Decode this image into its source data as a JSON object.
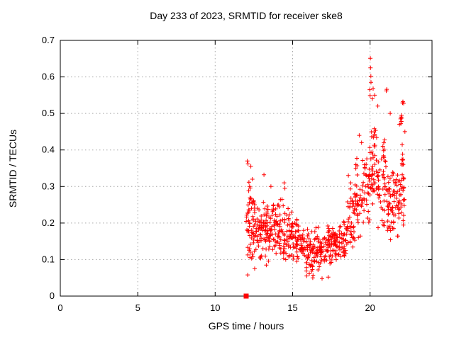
{
  "chart": {
    "title": "Day 233 of 2023, SRMTID for receiver ske8",
    "xlabel": "GPS time / hours",
    "ylabel": "SRMTID / TECUs"
  },
  "chart_data": {
    "type": "scatter",
    "title": "Day 233 of 2023, SRMTID for receiver ske8",
    "xlabel": "GPS time / hours",
    "ylabel": "SRMTID / TECUs",
    "xlim": [
      0,
      24
    ],
    "ylim": [
      0,
      0.7
    ],
    "x_ticks": [
      {
        "v": 0,
        "label": "0"
      },
      {
        "v": 5,
        "label": "5"
      },
      {
        "v": 10,
        "label": "10"
      },
      {
        "v": 15,
        "label": "15"
      },
      {
        "v": 20,
        "label": "20"
      }
    ],
    "y_ticks": [
      {
        "v": 0.0,
        "label": "0"
      },
      {
        "v": 0.1,
        "label": "0.1"
      },
      {
        "v": 0.2,
        "label": "0.2"
      },
      {
        "v": 0.3,
        "label": "0.3"
      },
      {
        "v": 0.4,
        "label": "0.4"
      },
      {
        "v": 0.5,
        "label": "0.5"
      },
      {
        "v": 0.6,
        "label": "0.6"
      },
      {
        "v": 0.7,
        "label": "0.7"
      }
    ],
    "x_grid": [
      5,
      10,
      15,
      20
    ],
    "y_grid": [
      0.1,
      0.2,
      0.3,
      0.4,
      0.5,
      0.6
    ],
    "grid": true,
    "legend": "none",
    "border_color": "#000000",
    "grid_color": "#a6a6a6",
    "marker": {
      "shape": "plus",
      "color": "#ff0000",
      "size": 7
    },
    "data_time_range_hours": [
      12.0,
      22.35
    ],
    "series": [
      {
        "name": "SRMTID",
        "seed": 7,
        "y_clamp": [
          0.04,
          0.67
        ],
        "bands": [
          [
            12.0,
            12.3,
            30,
            0.2,
            0.12
          ],
          [
            12.3,
            12.6,
            30,
            0.19,
            0.1
          ],
          [
            12.6,
            13.0,
            38,
            0.17,
            0.08
          ],
          [
            13.0,
            13.5,
            42,
            0.18,
            0.09
          ],
          [
            13.5,
            14.0,
            42,
            0.18,
            0.08
          ],
          [
            14.0,
            14.5,
            42,
            0.18,
            0.09
          ],
          [
            14.5,
            15.0,
            40,
            0.17,
            0.08
          ],
          [
            15.0,
            15.5,
            40,
            0.15,
            0.08
          ],
          [
            15.5,
            16.0,
            40,
            0.13,
            0.07
          ],
          [
            16.0,
            16.5,
            40,
            0.12,
            0.07
          ],
          [
            16.5,
            17.0,
            40,
            0.13,
            0.07
          ],
          [
            17.0,
            17.5,
            42,
            0.145,
            0.07
          ],
          [
            17.5,
            18.0,
            40,
            0.145,
            0.06
          ],
          [
            18.0,
            18.5,
            36,
            0.16,
            0.07
          ],
          [
            18.5,
            19.0,
            36,
            0.21,
            0.1
          ],
          [
            19.0,
            19.5,
            38,
            0.26,
            0.12
          ],
          [
            19.5,
            20.0,
            40,
            0.31,
            0.14
          ],
          [
            20.0,
            20.5,
            44,
            0.35,
            0.15
          ],
          [
            20.5,
            21.0,
            42,
            0.31,
            0.13
          ],
          [
            21.0,
            21.5,
            40,
            0.28,
            0.13
          ],
          [
            21.5,
            22.0,
            40,
            0.26,
            0.11
          ],
          [
            22.0,
            22.35,
            28,
            0.3,
            0.14
          ]
        ],
        "outliers": [
          [
            20.02,
            0.651
          ],
          [
            20.03,
            0.625
          ],
          [
            20.05,
            0.602
          ],
          [
            20.06,
            0.585
          ],
          [
            19.98,
            0.565
          ],
          [
            20.2,
            0.568
          ],
          [
            20.0,
            0.549
          ],
          [
            21.05,
            0.562
          ],
          [
            21.08,
            0.566
          ],
          [
            22.12,
            0.532
          ],
          [
            22.17,
            0.528
          ],
          [
            22.1,
            0.529
          ],
          [
            20.3,
            0.55
          ],
          [
            20.15,
            0.54
          ],
          [
            20.5,
            0.52
          ],
          [
            21.3,
            0.5
          ],
          [
            12.08,
            0.37
          ],
          [
            12.12,
            0.362
          ],
          [
            12.3,
            0.355
          ],
          [
            13.15,
            0.332
          ],
          [
            12.22,
            0.3
          ],
          [
            12.4,
            0.32
          ],
          [
            13.6,
            0.3
          ],
          [
            14.45,
            0.31
          ],
          [
            14.5,
            0.295
          ],
          [
            18.6,
            0.33
          ],
          [
            18.75,
            0.31
          ],
          [
            19.3,
            0.44
          ],
          [
            19.45,
            0.42
          ],
          [
            21.9,
            0.47
          ],
          [
            22.25,
            0.45
          ],
          [
            21.97,
            0.485
          ],
          [
            22.0,
            0.49
          ],
          [
            22.02,
            0.478
          ],
          [
            22.05,
            0.487
          ],
          [
            21.99,
            0.472
          ],
          [
            22.03,
            0.495
          ],
          [
            16.3,
            0.05
          ],
          [
            16.9,
            0.048
          ],
          [
            17.3,
            0.052
          ],
          [
            15.9,
            0.055
          ],
          [
            12.55,
            0.075
          ],
          [
            13.3,
            0.085
          ],
          [
            12.1,
            0.058
          ]
        ]
      }
    ],
    "zero_marker": {
      "x": 12.0,
      "y": 0,
      "shape": "filled-square",
      "color": "#ff0000",
      "size": 7
    }
  }
}
